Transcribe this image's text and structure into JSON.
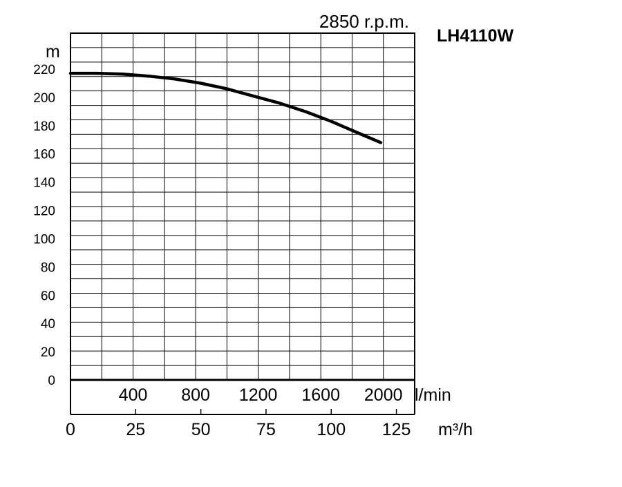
{
  "chart_data": {
    "type": "line",
    "speed_label": "2850 r.p.m.",
    "model": "LH4110W",
    "y_unit": "m",
    "ylim": [
      0,
      220
    ],
    "y_ticks": [
      0,
      20,
      40,
      60,
      80,
      100,
      120,
      140,
      160,
      180,
      200,
      220
    ],
    "x_unit_lmin": "l/min",
    "x_ticks_lmin": [
      400,
      800,
      1200,
      1600,
      2000
    ],
    "x_unit_m3h": "m³/h",
    "x_ticks_m3h": [
      0,
      25,
      50,
      75,
      100,
      125
    ],
    "xlim_m3h": [
      0,
      132
    ],
    "grid": true,
    "series": [
      {
        "x": [
          0,
          10,
          20,
          30,
          40,
          50,
          60,
          70,
          80,
          90,
          100,
          110,
          119
        ],
        "y": [
          217,
          217,
          216.5,
          215,
          213,
          210,
          206,
          201,
          196,
          190,
          183,
          175,
          168
        ]
      }
    ]
  }
}
